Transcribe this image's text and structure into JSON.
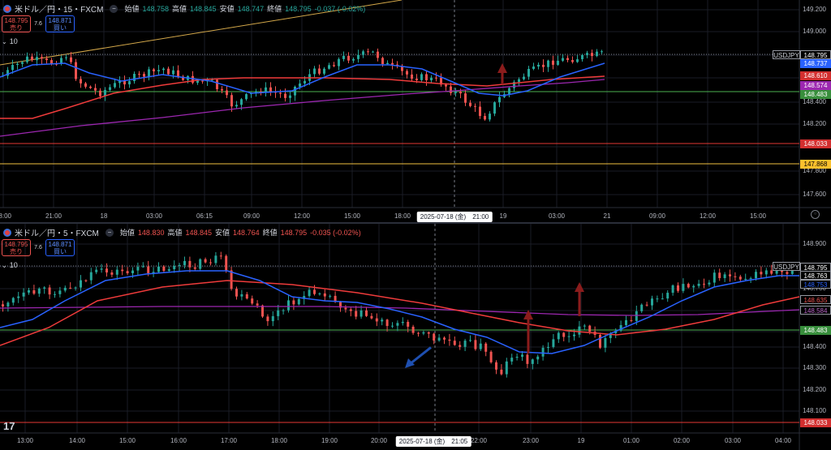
{
  "top": {
    "legend": {
      "symbol": "米ドル／円・15・FXCM",
      "open_label": "始値",
      "open": "148.758",
      "high_label": "高値",
      "high": "148.845",
      "low_label": "安値",
      "low": "148.747",
      "close_label": "終値",
      "close": "148.795",
      "change": "-0.037 (-0.02%)",
      "dash": "−"
    },
    "trade": {
      "sell_price": "148.795",
      "sell_label": "売り",
      "spread": "7.6",
      "buy_price": "148.871",
      "buy_label": "買い"
    },
    "lots": "10",
    "symbol_tag": "USDJPY",
    "price_ticks": [
      "149.200",
      "149.000",
      "148.800",
      "148.600",
      "148.400",
      "148.200",
      "148.000",
      "147.800",
      "147.600"
    ],
    "tags": [
      {
        "text": "148.795",
        "bg": "#000000",
        "fg": "#ffffff"
      },
      {
        "text": "148.737",
        "bg": "#2962ff",
        "fg": "#ffffff"
      },
      {
        "text": "148.610",
        "bg": "#d32f2f",
        "fg": "#ffffff"
      },
      {
        "text": "148.574",
        "bg": "#9c27b0",
        "fg": "#ffffff"
      },
      {
        "text": "148.483",
        "bg": "#388e3c",
        "fg": "#ffffff"
      },
      {
        "text": "148.033",
        "bg": "#d32f2f",
        "fg": "#ffffff"
      },
      {
        "text": "147.868",
        "bg": "#fbc02d",
        "fg": "#000000"
      }
    ],
    "time_ticks": [
      "18:00",
      "21:00",
      "18",
      "03:00",
      "06:15",
      "09:00",
      "12:00",
      "15:00",
      "18:00",
      "19",
      "03:00",
      "21",
      "09:00",
      "12:00",
      "15:00"
    ],
    "crosshair_time": "2025-07-18 (金)　21:00"
  },
  "bottom": {
    "legend": {
      "symbol": "米ドル／円・5・FXCM",
      "open_label": "始値",
      "open": "148.830",
      "high_label": "高値",
      "high": "148.845",
      "low_label": "安値",
      "low": "148.764",
      "close_label": "終値",
      "close": "148.795",
      "change": "-0.035 (-0.02%)",
      "dash": "−"
    },
    "trade": {
      "sell_price": "148.795",
      "sell_label": "売り",
      "spread": "7.6",
      "buy_price": "148.871",
      "buy_label": "買い"
    },
    "lots": "10",
    "symbol_tag": "USDJPY",
    "price_ticks": [
      "148.900",
      "148.800",
      "148.700",
      "148.600",
      "148.500",
      "148.400",
      "148.300",
      "148.200",
      "148.100"
    ],
    "tags": [
      {
        "text": "148.795",
        "bg": "#000000",
        "fg": "#ffffff"
      },
      {
        "text": "148.763",
        "bg": "#000000",
        "fg": "#ffffff"
      },
      {
        "text": "148.753",
        "bg": "#000000",
        "fg": "#2962ff"
      },
      {
        "text": "148.635",
        "bg": "#000000",
        "fg": "#ef5350"
      },
      {
        "text": "148.584",
        "bg": "#000000",
        "fg": "#ba68c8"
      },
      {
        "text": "148.483",
        "bg": "#388e3c",
        "fg": "#ffffff"
      },
      {
        "text": "148.033",
        "bg": "#d32f2f",
        "fg": "#ffffff"
      }
    ],
    "time_ticks": [
      "13:00",
      "14:00",
      "15:00",
      "16:00",
      "17:00",
      "18:00",
      "19:00",
      "20:00",
      "22:00",
      "23:00",
      "19",
      "01:00",
      "02:00",
      "03:00",
      "04:00"
    ],
    "crosshair_time": "2025-07-18 (金)　21:05",
    "brand": "17"
  },
  "colors": {
    "up": "#26a69a",
    "down": "#ef5350",
    "sma_short": "#2962ff",
    "sma_mid": "#ef3b3b",
    "sma_long": "#9c27b0",
    "support": "#4caf50",
    "level_red": "#e53935",
    "level_yellow": "#f0c040",
    "trend": "#d4a84a",
    "arrow": "#8b1c1c",
    "arrow_blue": "#1e4fb0",
    "grid": "#1a1d26"
  }
}
